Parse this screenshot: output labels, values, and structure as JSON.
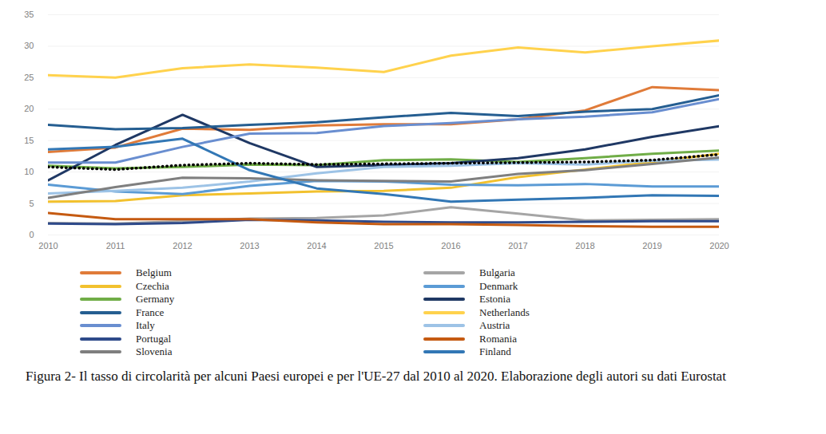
{
  "chart_data": {
    "type": "line",
    "caption": "Figura 2- Il tasso di circolarità per alcuni Paesi europei e per l'UE-27 dal 2010 al 2020. Elaborazione degli autori su dati Eurostat",
    "x": [
      2010,
      2011,
      2012,
      2013,
      2014,
      2015,
      2016,
      2017,
      2018,
      2019,
      2020
    ],
    "xlim": [
      2010,
      2020
    ],
    "xticks": [
      2010,
      2011,
      2012,
      2013,
      2014,
      2015,
      2016,
      2017,
      2018,
      2019,
      2020
    ],
    "ylim": [
      0,
      35
    ],
    "yticks": [
      0,
      5,
      10,
      15,
      20,
      25,
      30,
      35
    ],
    "grid": true,
    "legend": "bottom",
    "series": [
      {
        "name": "Belgium",
        "color": "#e07b39",
        "values": [
          13.2,
          13.9,
          16.9,
          16.7,
          17.4,
          17.6,
          17.6,
          18.4,
          19.8,
          23.5,
          23.0
        ]
      },
      {
        "name": "Bulgaria",
        "color": "#a5a5a5",
        "values": [
          1.9,
          1.8,
          2.2,
          2.6,
          2.7,
          3.1,
          4.4,
          3.4,
          2.3,
          2.4,
          2.5
        ]
      },
      {
        "name": "Czechia",
        "color": "#f2c12e",
        "values": [
          5.3,
          5.4,
          6.3,
          6.6,
          6.9,
          7.0,
          7.5,
          9.2,
          10.4,
          11.6,
          12.9
        ]
      },
      {
        "name": "Denmark",
        "color": "#5b9bd5",
        "values": [
          8.0,
          6.9,
          6.5,
          7.8,
          8.6,
          8.5,
          8.0,
          7.9,
          8.1,
          7.7,
          7.7
        ]
      },
      {
        "name": "Germany",
        "color": "#70ad47",
        "values": [
          11.0,
          10.6,
          10.8,
          11.2,
          11.1,
          11.9,
          12.0,
          11.6,
          12.2,
          12.9,
          13.4
        ]
      },
      {
        "name": "Estonia",
        "color": "#1f3864",
        "values": [
          8.7,
          14.3,
          19.1,
          14.6,
          10.8,
          11.1,
          11.4,
          12.2,
          13.6,
          15.6,
          17.3
        ]
      },
      {
        "name": "France",
        "color": "#255e91",
        "values": [
          17.5,
          16.8,
          17.0,
          17.5,
          17.9,
          18.7,
          19.4,
          18.9,
          19.6,
          20.0,
          22.2
        ]
      },
      {
        "name": "Netherlands",
        "color": "#ffd24d",
        "values": [
          25.4,
          25.0,
          26.5,
          27.1,
          26.6,
          25.9,
          28.5,
          29.8,
          29.0,
          30.0,
          30.9
        ]
      },
      {
        "name": "Italy",
        "color": "#698ed0",
        "values": [
          11.5,
          11.5,
          14.0,
          16.1,
          16.2,
          17.3,
          17.8,
          18.4,
          18.8,
          19.5,
          21.6
        ]
      },
      {
        "name": "Austria",
        "color": "#9dc3e6",
        "values": [
          6.6,
          7.0,
          7.5,
          8.5,
          9.8,
          10.8,
          11.0,
          11.4,
          11.2,
          11.8,
          12.0
        ]
      },
      {
        "name": "Portugal",
        "color": "#2e4a8a",
        "values": [
          1.8,
          1.7,
          1.9,
          2.4,
          2.3,
          2.1,
          2.0,
          2.0,
          2.1,
          2.2,
          2.2
        ]
      },
      {
        "name": "Romania",
        "color": "#c55a11",
        "values": [
          3.5,
          2.5,
          2.5,
          2.5,
          2.0,
          1.7,
          1.7,
          1.6,
          1.4,
          1.3,
          1.3
        ]
      },
      {
        "name": "Slovenia",
        "color": "#7f7f7f",
        "values": [
          5.9,
          7.6,
          9.1,
          9.0,
          8.7,
          8.6,
          8.5,
          9.7,
          10.3,
          11.3,
          12.3
        ]
      },
      {
        "name": "Finland",
        "color": "#3277b5",
        "values": [
          13.6,
          14.0,
          15.3,
          10.3,
          7.4,
          6.5,
          5.3,
          5.6,
          5.9,
          6.3,
          6.2
        ]
      },
      {
        "color": "#000000",
        "line_style": "dotted",
        "values": [
          10.8,
          10.4,
          11.1,
          11.4,
          11.2,
          11.3,
          11.4,
          11.5,
          11.6,
          11.9,
          12.8
        ]
      }
    ]
  }
}
